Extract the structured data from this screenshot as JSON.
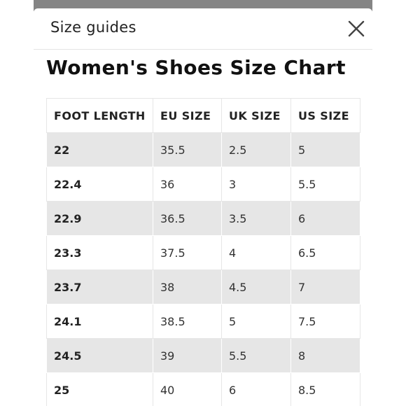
{
  "modal": {
    "title": "Size guides",
    "close_icon": "close-icon"
  },
  "chart_heading": "Women's Shoes Size Chart",
  "table": {
    "headers": [
      "FOOT LENGTH",
      "EU SIZE",
      "UK SIZE",
      "US SIZE"
    ],
    "rows": [
      [
        "22",
        "35.5",
        "2.5",
        "5"
      ],
      [
        "22.4",
        "36",
        "3",
        "5.5"
      ],
      [
        "22.9",
        "36.5",
        "3.5",
        "6"
      ],
      [
        "23.3",
        "37.5",
        "4",
        "6.5"
      ],
      [
        "23.7",
        "38",
        "4.5",
        "7"
      ],
      [
        "24.1",
        "38.5",
        "5",
        "7.5"
      ],
      [
        "24.5",
        "39",
        "5.5",
        "8"
      ],
      [
        "25",
        "40",
        "6",
        "8.5"
      ]
    ]
  },
  "colors": {
    "backdrop": "#858585",
    "row_shade": "#e6e6e6",
    "text": "#222222"
  }
}
